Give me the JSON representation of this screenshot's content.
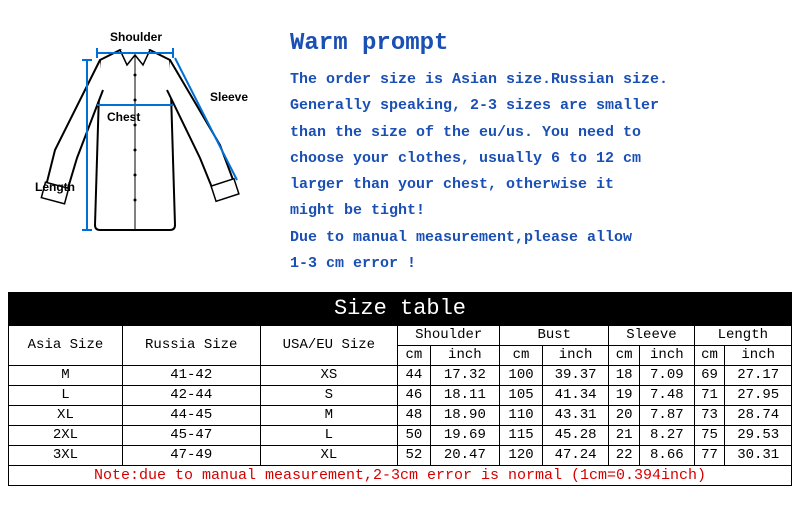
{
  "diagram": {
    "labels": {
      "shoulder": "Shoulder",
      "sleeve": "Sleeve",
      "chest": "Chest",
      "length": "Length"
    },
    "colors": {
      "shirt_outline": "#000000",
      "measure_line": "#0070d8",
      "background": "#ffffff"
    }
  },
  "warm_prompt": {
    "title": "Warm prompt",
    "body": "The order size is Asian size.Russian size.\nGenerally speaking, 2-3 sizes are smaller\nthan the size of the eu/us. You need to\nchoose your clothes, usually 6 to 12 cm\nlarger than your chest, otherwise it\nmight be tight!\nDue to manual measurement,please allow\n1-3 cm error !",
    "title_color": "#1a4fb3",
    "body_color": "#1a4fb3",
    "title_fontsize": 24,
    "body_fontsize": 15
  },
  "size_table": {
    "title": "Size table",
    "title_bg": "#000000",
    "title_fg": "#ffffff",
    "border_color": "#000000",
    "cell_bg": "#ffffff",
    "header_groups": [
      "Asia Size",
      "Russia Size",
      "USA/EU Size",
      "Shoulder",
      "Bust",
      "Sleeve",
      "Length"
    ],
    "sub_units": [
      "cm",
      "inch"
    ],
    "rows": [
      {
        "asia": "M",
        "russia": "41-42",
        "useu": "XS",
        "shoulder_cm": "44",
        "shoulder_in": "17.32",
        "bust_cm": "100",
        "bust_in": "39.37",
        "sleeve_cm": "18",
        "sleeve_in": "7.09",
        "length_cm": "69",
        "length_in": "27.17"
      },
      {
        "asia": "L",
        "russia": "42-44",
        "useu": "S",
        "shoulder_cm": "46",
        "shoulder_in": "18.11",
        "bust_cm": "105",
        "bust_in": "41.34",
        "sleeve_cm": "19",
        "sleeve_in": "7.48",
        "length_cm": "71",
        "length_in": "27.95"
      },
      {
        "asia": "XL",
        "russia": "44-45",
        "useu": "M",
        "shoulder_cm": "48",
        "shoulder_in": "18.90",
        "bust_cm": "110",
        "bust_in": "43.31",
        "sleeve_cm": "20",
        "sleeve_in": "7.87",
        "length_cm": "73",
        "length_in": "28.74"
      },
      {
        "asia": "2XL",
        "russia": "45-47",
        "useu": "L",
        "shoulder_cm": "50",
        "shoulder_in": "19.69",
        "bust_cm": "115",
        "bust_in": "45.28",
        "sleeve_cm": "21",
        "sleeve_in": "8.27",
        "length_cm": "75",
        "length_in": "29.53"
      },
      {
        "asia": "3XL",
        "russia": "47-49",
        "useu": "XL",
        "shoulder_cm": "52",
        "shoulder_in": "20.47",
        "bust_cm": "120",
        "bust_in": "47.24",
        "sleeve_cm": "22",
        "sleeve_in": "8.66",
        "length_cm": "77",
        "length_in": "30.31"
      }
    ],
    "note": "Note:due to manual measurement,2-3cm error is normal (1cm=0.394inch)",
    "note_color": "#d40000"
  }
}
